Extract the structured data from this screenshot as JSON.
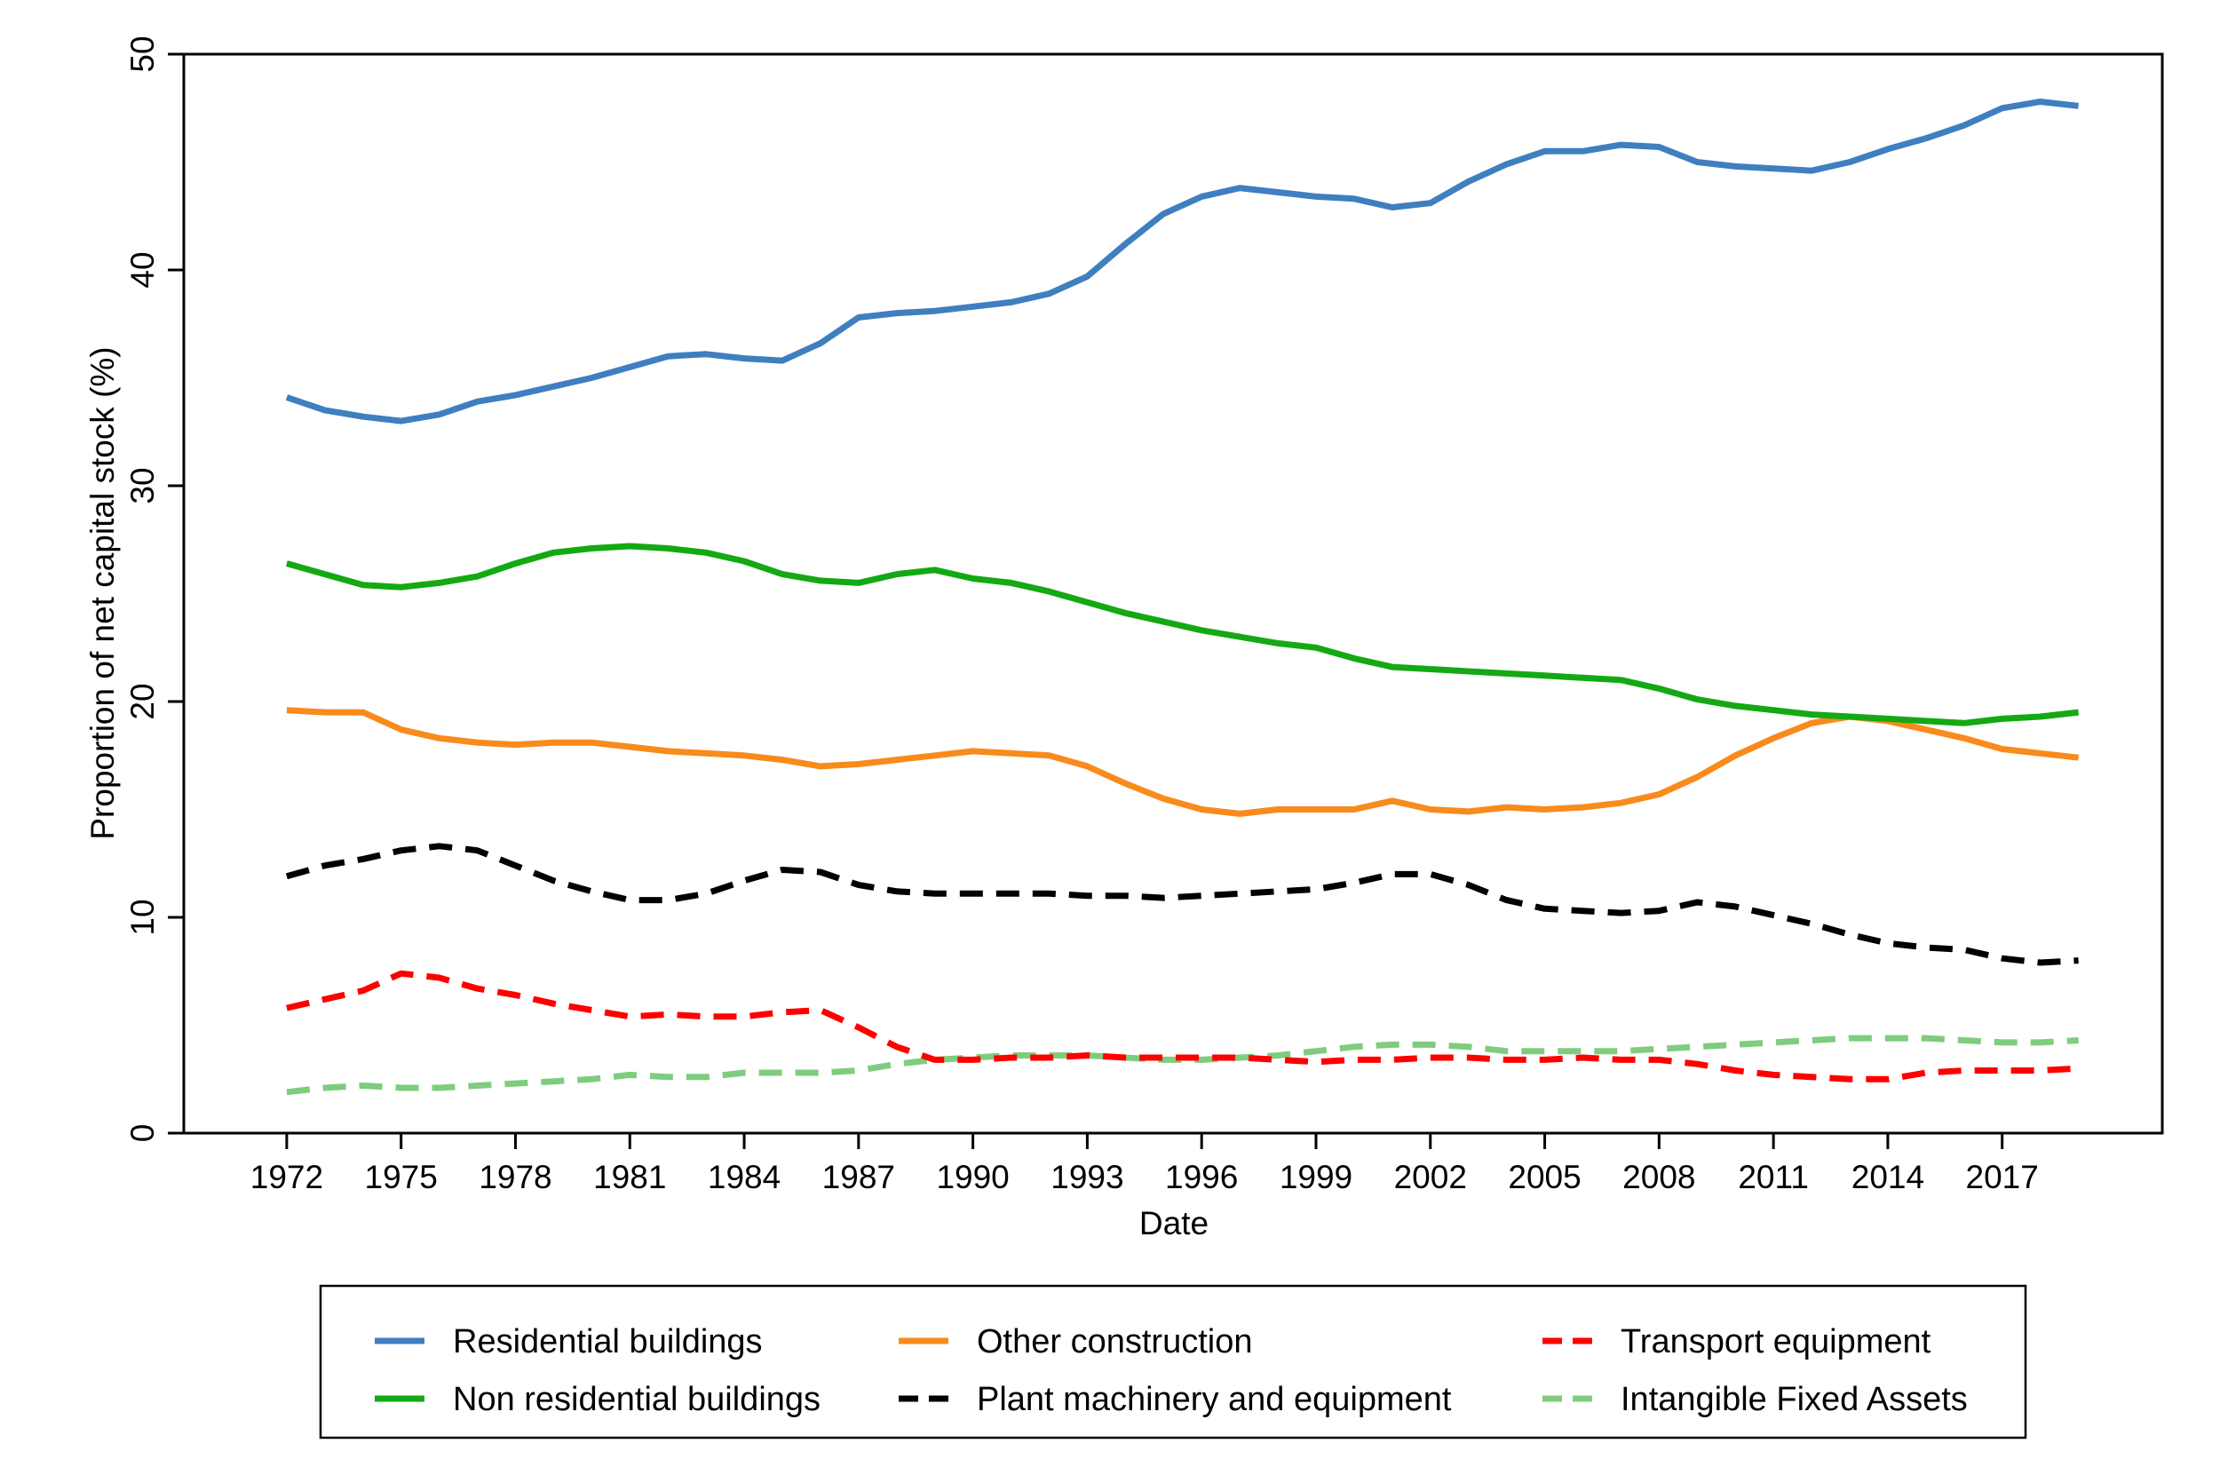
{
  "chart_data": {
    "type": "line",
    "title": "",
    "xlabel": "Date",
    "ylabel": "Proportion of net capital stock (%)",
    "xlim": [
      1969.3,
      2021.2
    ],
    "ylim": [
      0,
      50
    ],
    "x_ticks": [
      1972,
      1975,
      1978,
      1981,
      1984,
      1987,
      1990,
      1993,
      1996,
      1999,
      2002,
      2005,
      2008,
      2011,
      2014,
      2017
    ],
    "y_ticks": [
      0,
      10,
      20,
      30,
      40,
      50
    ],
    "grid": false,
    "legend_position": "bottom",
    "x": [
      1972,
      1973,
      1974,
      1975,
      1976,
      1977,
      1978,
      1979,
      1980,
      1981,
      1982,
      1983,
      1984,
      1985,
      1986,
      1987,
      1988,
      1989,
      1990,
      1991,
      1992,
      1993,
      1994,
      1995,
      1996,
      1997,
      1998,
      1999,
      2000,
      2001,
      2002,
      2003,
      2004,
      2005,
      2006,
      2007,
      2008,
      2009,
      2010,
      2011,
      2012,
      2013,
      2014,
      2015,
      2016,
      2017,
      2018,
      2019
    ],
    "series": [
      {
        "name": "Residential buildings",
        "color": "#3f7fbf",
        "dash": "solid",
        "values": [
          34.1,
          33.5,
          33.2,
          33.0,
          33.3,
          33.9,
          34.2,
          34.6,
          35.0,
          35.5,
          36.0,
          36.1,
          35.9,
          35.8,
          36.6,
          37.8,
          38.0,
          38.1,
          38.3,
          38.5,
          38.9,
          39.7,
          41.2,
          42.6,
          43.4,
          43.8,
          43.6,
          43.4,
          43.3,
          42.9,
          43.1,
          44.1,
          44.9,
          45.5,
          45.5,
          45.8,
          45.7,
          45.0,
          44.8,
          44.7,
          44.6,
          45.0,
          45.6,
          46.1,
          46.7,
          47.5,
          47.8,
          47.6
        ]
      },
      {
        "name": "Non residential buildings",
        "color": "#14a914",
        "dash": "solid",
        "values": [
          26.4,
          25.9,
          25.4,
          25.3,
          25.5,
          25.8,
          26.4,
          26.9,
          27.1,
          27.2,
          27.1,
          26.9,
          26.5,
          25.9,
          25.6,
          25.5,
          25.9,
          26.1,
          25.7,
          25.5,
          25.1,
          24.6,
          24.1,
          23.7,
          23.3,
          23.0,
          22.7,
          22.5,
          22.0,
          21.6,
          21.5,
          21.4,
          21.3,
          21.2,
          21.1,
          21.0,
          20.6,
          20.1,
          19.8,
          19.6,
          19.4,
          19.3,
          19.2,
          19.1,
          19.0,
          19.2,
          19.3,
          19.5
        ]
      },
      {
        "name": "Other construction",
        "color": "#f88b1c",
        "dash": "solid",
        "values": [
          19.6,
          19.5,
          19.5,
          18.7,
          18.3,
          18.1,
          18.0,
          18.1,
          18.1,
          17.9,
          17.7,
          17.6,
          17.5,
          17.3,
          17.0,
          17.1,
          17.3,
          17.5,
          17.7,
          17.6,
          17.5,
          17.0,
          16.2,
          15.5,
          15.0,
          14.8,
          15.0,
          15.0,
          15.0,
          15.4,
          15.0,
          14.9,
          15.1,
          15.0,
          15.1,
          15.3,
          15.7,
          16.5,
          17.5,
          18.3,
          19.0,
          19.3,
          19.1,
          18.7,
          18.3,
          17.8,
          17.6,
          17.4
        ]
      },
      {
        "name": "Plant machinery and equipment",
        "color": "#000000",
        "dash": "dashed",
        "values": [
          11.9,
          12.4,
          12.7,
          13.1,
          13.3,
          13.1,
          12.4,
          11.7,
          11.2,
          10.8,
          10.8,
          11.1,
          11.7,
          12.2,
          12.1,
          11.5,
          11.2,
          11.1,
          11.1,
          11.1,
          11.1,
          11.0,
          11.0,
          10.9,
          11.0,
          11.1,
          11.2,
          11.3,
          11.6,
          12.0,
          12.0,
          11.5,
          10.8,
          10.4,
          10.3,
          10.2,
          10.3,
          10.7,
          10.5,
          10.1,
          9.7,
          9.2,
          8.8,
          8.6,
          8.5,
          8.1,
          7.9,
          8.0
        ]
      },
      {
        "name": "Transport equipment",
        "color": "#ff0000",
        "dash": "dashed",
        "values": [
          5.8,
          6.2,
          6.6,
          7.4,
          7.2,
          6.7,
          6.4,
          6.0,
          5.7,
          5.4,
          5.5,
          5.4,
          5.4,
          5.6,
          5.7,
          4.9,
          4.0,
          3.4,
          3.4,
          3.5,
          3.5,
          3.6,
          3.5,
          3.5,
          3.5,
          3.5,
          3.4,
          3.3,
          3.4,
          3.4,
          3.5,
          3.5,
          3.4,
          3.4,
          3.5,
          3.4,
          3.4,
          3.2,
          2.9,
          2.7,
          2.6,
          2.5,
          2.5,
          2.8,
          2.9,
          2.9,
          2.9,
          3.0
        ]
      },
      {
        "name": "Intangible Fixed Assets",
        "color": "#7fcc7f",
        "dash": "dashed",
        "values": [
          1.9,
          2.1,
          2.2,
          2.1,
          2.1,
          2.2,
          2.3,
          2.4,
          2.5,
          2.7,
          2.6,
          2.6,
          2.8,
          2.8,
          2.8,
          2.9,
          3.2,
          3.4,
          3.5,
          3.6,
          3.6,
          3.6,
          3.5,
          3.4,
          3.4,
          3.5,
          3.6,
          3.8,
          4.0,
          4.1,
          4.1,
          4.0,
          3.8,
          3.8,
          3.8,
          3.8,
          3.9,
          4.0,
          4.1,
          4.2,
          4.3,
          4.4,
          4.4,
          4.4,
          4.3,
          4.2,
          4.2,
          4.3
        ]
      }
    ]
  }
}
